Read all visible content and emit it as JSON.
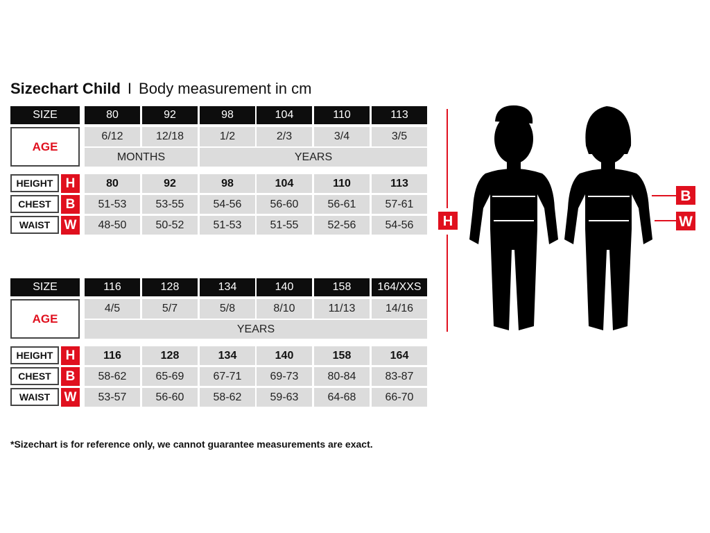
{
  "title": {
    "main": "Sizechart Child",
    "separator": "I",
    "sub": "Body measurement in cm"
  },
  "labels": {
    "size": "SIZE",
    "age": "AGE",
    "height": "HEIGHT",
    "chest": "CHEST",
    "waist": "WAIST",
    "height_letter": "H",
    "chest_letter": "B",
    "waist_letter": "W"
  },
  "tables": [
    {
      "sizes": [
        "80",
        "92",
        "98",
        "104",
        "110",
        "113"
      ],
      "ages": [
        "6/12",
        "12/18",
        "1/2",
        "2/3",
        "3/4",
        "3/5"
      ],
      "age_units": [
        {
          "label": "MONTHS",
          "span": 2
        },
        {
          "label": "YEARS",
          "span": 4
        }
      ],
      "height": [
        "80",
        "92",
        "98",
        "104",
        "110",
        "113"
      ],
      "chest": [
        "51-53",
        "53-55",
        "54-56",
        "56-60",
        "56-61",
        "57-61"
      ],
      "waist": [
        "48-50",
        "50-52",
        "51-53",
        "51-55",
        "52-56",
        "54-56"
      ]
    },
    {
      "sizes": [
        "116",
        "128",
        "134",
        "140",
        "158",
        "164/XXS"
      ],
      "ages": [
        "4/5",
        "5/7",
        "5/8",
        "8/10",
        "11/13",
        "14/16"
      ],
      "age_units": [
        {
          "label": "YEARS",
          "span": 6
        }
      ],
      "height": [
        "116",
        "128",
        "134",
        "140",
        "158",
        "164"
      ],
      "chest": [
        "58-62",
        "65-69",
        "67-71",
        "69-73",
        "80-84",
        "83-87"
      ],
      "waist": [
        "53-57",
        "56-60",
        "58-62",
        "59-63",
        "64-68",
        "66-70"
      ]
    }
  ],
  "figure": {
    "height_marker": "H",
    "chest_marker": "B",
    "waist_marker": "W"
  },
  "footnote": "*Sizechart is for reference only, we cannot guarantee measurements are exact.",
  "colors": {
    "accent": "#e0101e",
    "header": "#0d0d0d",
    "cell": "#dcdcdc"
  }
}
